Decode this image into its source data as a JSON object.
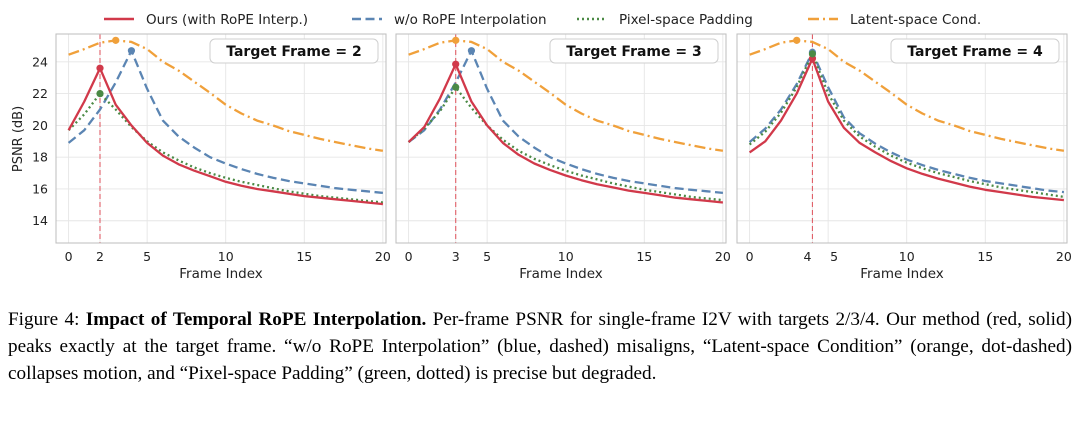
{
  "chart_data": {
    "type": "line",
    "ylabel": "PSNR (dB)",
    "xlabel": "Frame Index",
    "xlim": [
      -0.8,
      20.2
    ],
    "ylim": [
      12.6,
      25.75
    ],
    "xticks": [
      0,
      2,
      5,
      10,
      15,
      20
    ],
    "yticks": [
      14,
      16,
      18,
      20,
      22,
      24
    ],
    "grid": true,
    "legend_position": "top",
    "legend": [
      {
        "key": "ours",
        "label": "Ours (with RoPE Interp.)",
        "color": "#d1394a",
        "style": "solid"
      },
      {
        "key": "wo",
        "label": "w/o RoPE Interpolation",
        "color": "#5b85b3",
        "style": "dashed"
      },
      {
        "key": "pixel",
        "label": "Pixel-space Padding",
        "color": "#4b8a45",
        "style": "dotted"
      },
      {
        "key": "latent",
        "label": "Latent-space Cond.",
        "color": "#f0a03a",
        "style": "dashdot"
      }
    ],
    "panels": [
      {
        "title": "Target Frame = 2",
        "target": 2,
        "xticks": [
          0,
          2,
          5,
          10,
          15,
          20
        ],
        "series": {
          "ours": {
            "x": [
              0,
              1,
              2,
              3,
              4,
              5,
              6,
              7,
              8,
              9,
              10,
              11,
              12,
              13,
              14,
              15,
              16,
              17,
              18,
              19,
              20
            ],
            "y": [
              19.7,
              21.5,
              23.6,
              21.3,
              20.0,
              18.9,
              18.1,
              17.55,
              17.15,
              16.8,
              16.45,
              16.2,
              16.0,
              15.85,
              15.7,
              15.55,
              15.45,
              15.35,
              15.25,
              15.15,
              15.05
            ]
          },
          "wo": {
            "x": [
              0,
              1,
              2,
              3,
              4,
              5,
              6,
              7,
              8,
              9,
              10,
              11,
              12,
              13,
              14,
              15,
              16,
              17,
              18,
              19,
              20
            ],
            "y": [
              18.9,
              19.7,
              21.0,
              22.7,
              24.7,
              22.3,
              20.3,
              19.3,
              18.6,
              18.0,
              17.6,
              17.25,
              16.95,
              16.7,
              16.5,
              16.35,
              16.2,
              16.05,
              15.95,
              15.85,
              15.75
            ]
          },
          "pixel": {
            "x": [
              0,
              1,
              2,
              3,
              4,
              5,
              6,
              7,
              8,
              9,
              10,
              11,
              12,
              13,
              14,
              15,
              16,
              17,
              18,
              19,
              20
            ],
            "y": [
              19.7,
              20.7,
              22.0,
              21.0,
              19.9,
              19.0,
              18.3,
              17.8,
              17.35,
              17.0,
              16.7,
              16.45,
              16.25,
              16.05,
              15.85,
              15.7,
              15.55,
              15.45,
              15.35,
              15.25,
              15.15
            ]
          },
          "latent": {
            "x": [
              0,
              1,
              2,
              3,
              4,
              5,
              6,
              7,
              8,
              9,
              10,
              11,
              12,
              13,
              14,
              15,
              16,
              17,
              18,
              19,
              20
            ],
            "y": [
              24.45,
              24.8,
              25.2,
              25.35,
              25.25,
              24.8,
              24.0,
              23.45,
              22.75,
              22.05,
              21.3,
              20.75,
              20.3,
              20.0,
              19.65,
              19.4,
              19.15,
              18.95,
              18.75,
              18.55,
              18.4
            ]
          }
        },
        "markers": [
          {
            "series": "ours",
            "x": 2,
            "y": 23.6
          },
          {
            "series": "wo",
            "x": 4,
            "y": 24.7
          },
          {
            "series": "pixel",
            "x": 2,
            "y": 22.0
          },
          {
            "series": "latent",
            "x": 3,
            "y": 25.35
          }
        ]
      },
      {
        "title": "Target Frame = 3",
        "target": 3,
        "xticks": [
          0,
          3,
          5,
          10,
          15,
          20
        ],
        "series": {
          "ours": {
            "x": [
              0,
              1,
              2,
              3,
              4,
              5,
              6,
              7,
              8,
              9,
              10,
              11,
              12,
              13,
              14,
              15,
              16,
              17,
              18,
              19,
              20
            ],
            "y": [
              18.95,
              19.9,
              21.7,
              23.85,
              21.5,
              20.0,
              18.9,
              18.15,
              17.6,
              17.2,
              16.85,
              16.55,
              16.3,
              16.1,
              15.9,
              15.75,
              15.6,
              15.45,
              15.35,
              15.25,
              15.15
            ]
          },
          "wo": {
            "x": [
              0,
              1,
              2,
              3,
              4,
              5,
              6,
              7,
              8,
              9,
              10,
              11,
              12,
              13,
              14,
              15,
              16,
              17,
              18,
              19,
              20
            ],
            "y": [
              18.95,
              19.7,
              21.0,
              22.7,
              24.7,
              22.3,
              20.3,
              19.3,
              18.6,
              18.0,
              17.6,
              17.25,
              16.95,
              16.7,
              16.5,
              16.35,
              16.2,
              16.05,
              15.95,
              15.85,
              15.75
            ]
          },
          "pixel": {
            "x": [
              0,
              1,
              2,
              3,
              4,
              5,
              6,
              7,
              8,
              9,
              10,
              11,
              12,
              13,
              14,
              15,
              16,
              17,
              18,
              19,
              20
            ],
            "y": [
              18.95,
              19.8,
              20.9,
              22.4,
              21.1,
              20.0,
              19.1,
              18.4,
              17.9,
              17.5,
              17.15,
              16.85,
              16.6,
              16.35,
              16.15,
              15.95,
              15.8,
              15.65,
              15.5,
              15.4,
              15.3
            ]
          },
          "latent": {
            "x": [
              0,
              1,
              2,
              3,
              4,
              5,
              6,
              7,
              8,
              9,
              10,
              11,
              12,
              13,
              14,
              15,
              16,
              17,
              18,
              19,
              20
            ],
            "y": [
              24.45,
              24.8,
              25.2,
              25.35,
              25.25,
              24.8,
              24.0,
              23.45,
              22.75,
              22.05,
              21.3,
              20.75,
              20.3,
              20.0,
              19.65,
              19.4,
              19.15,
              18.95,
              18.75,
              18.55,
              18.4
            ]
          }
        },
        "markers": [
          {
            "series": "ours",
            "x": 3,
            "y": 23.85
          },
          {
            "series": "wo",
            "x": 4,
            "y": 24.7
          },
          {
            "series": "pixel",
            "x": 3,
            "y": 22.4
          },
          {
            "series": "latent",
            "x": 3,
            "y": 25.35
          }
        ]
      },
      {
        "title": "Target Frame = 4",
        "target": 4,
        "xticks": [
          0,
          4,
          5,
          10,
          15,
          20
        ],
        "series": {
          "ours": {
            "x": [
              0,
              1,
              2,
              3,
              4,
              5,
              6,
              7,
              8,
              9,
              10,
              11,
              12,
              13,
              14,
              15,
              16,
              17,
              18,
              19,
              20
            ],
            "y": [
              18.3,
              19.0,
              20.3,
              22.0,
              24.2,
              21.5,
              19.85,
              18.9,
              18.3,
              17.75,
              17.3,
              16.95,
              16.65,
              16.4,
              16.15,
              15.95,
              15.8,
              15.65,
              15.5,
              15.4,
              15.3
            ]
          },
          "wo": {
            "x": [
              0,
              1,
              2,
              3,
              4,
              5,
              6,
              7,
              8,
              9,
              10,
              11,
              12,
              13,
              14,
              15,
              16,
              17,
              18,
              19,
              20
            ],
            "y": [
              18.95,
              19.8,
              21.0,
              22.6,
              24.6,
              22.4,
              20.5,
              19.5,
              18.85,
              18.3,
              17.85,
              17.5,
              17.2,
              16.95,
              16.7,
              16.5,
              16.35,
              16.2,
              16.05,
              15.9,
              15.8
            ]
          },
          "pixel": {
            "x": [
              0,
              1,
              2,
              3,
              4,
              5,
              6,
              7,
              8,
              9,
              10,
              11,
              12,
              13,
              14,
              15,
              16,
              17,
              18,
              19,
              20
            ],
            "y": [
              18.8,
              19.6,
              20.8,
              22.4,
              24.5,
              22.0,
              20.3,
              19.3,
              18.65,
              18.1,
              17.65,
              17.3,
              17.0,
              16.75,
              16.5,
              16.3,
              16.1,
              15.95,
              15.8,
              15.65,
              15.5
            ]
          },
          "latent": {
            "x": [
              0,
              1,
              2,
              3,
              4,
              5,
              6,
              7,
              8,
              9,
              10,
              11,
              12,
              13,
              14,
              15,
              16,
              17,
              18,
              19,
              20
            ],
            "y": [
              24.45,
              24.8,
              25.2,
              25.35,
              25.25,
              24.8,
              24.0,
              23.45,
              22.75,
              22.05,
              21.3,
              20.75,
              20.3,
              20.0,
              19.65,
              19.4,
              19.15,
              18.95,
              18.75,
              18.55,
              18.4
            ]
          }
        },
        "markers": [
          {
            "series": "ours",
            "x": 4,
            "y": 24.2
          },
          {
            "series": "wo",
            "x": 4,
            "y": 24.6
          },
          {
            "series": "pixel",
            "x": 4,
            "y": 24.5
          },
          {
            "series": "latent",
            "x": 3,
            "y": 25.35
          }
        ]
      }
    ]
  },
  "caption": {
    "label": "Figure 4: ",
    "title": "Impact of Temporal RoPE Interpolation.",
    "body": " Per-frame PSNR for single-frame I2V with targets 2/3/4. Our method (red, solid) peaks exactly at the target frame. “w/o RoPE Interpolation” (blue, dashed) misaligns, “Latent-space Condition” (orange, dot-dashed) collapses motion, and “Pixel-space Padding” (green, dotted) is precise but degraded."
  }
}
